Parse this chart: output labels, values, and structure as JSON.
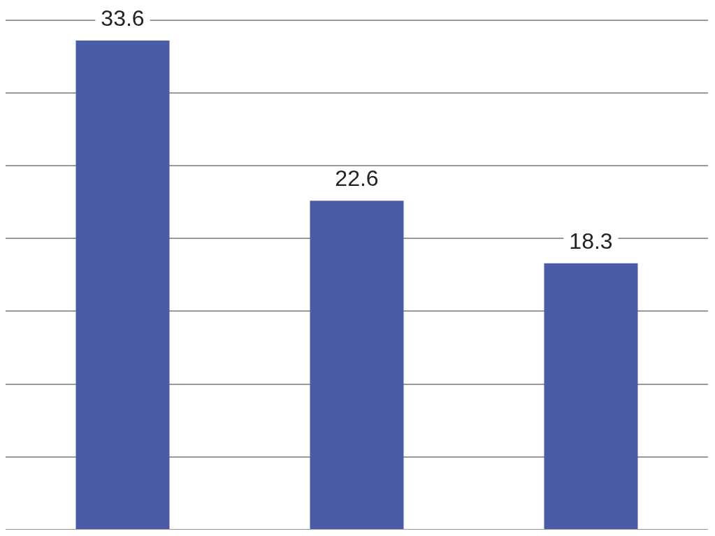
{
  "chart_data": {
    "type": "bar",
    "categories": [
      null,
      null,
      null
    ],
    "values": [
      33.6,
      22.6,
      18.3
    ],
    "color": "#4a5ba8",
    "ylim": [
      0,
      36
    ],
    "yticks": [
      {
        "value": 0,
        "label": null
      },
      {
        "value": 5,
        "label": null
      },
      {
        "value": 10,
        "label": null
      },
      {
        "value": 15,
        "label": null
      },
      {
        "value": 20,
        "label": null
      },
      {
        "value": 25,
        "label": null
      },
      {
        "value": 30,
        "label": null
      },
      {
        "value": 35,
        "label": null
      }
    ],
    "grid": "y",
    "tick_labels": false,
    "data_labels": true,
    "legend": false
  }
}
